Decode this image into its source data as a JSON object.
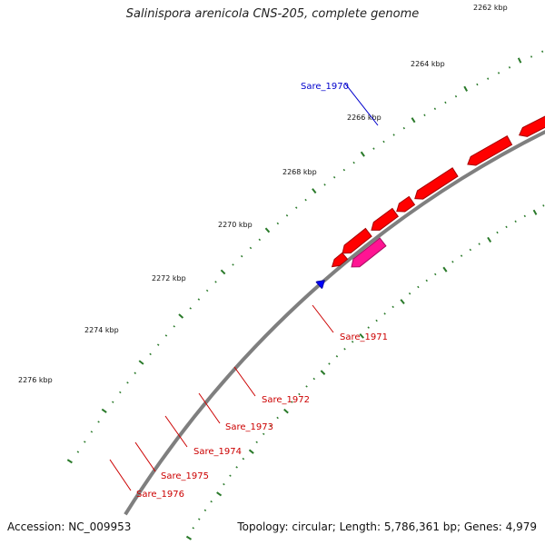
{
  "title": "Salinispora arenicola CNS-205, complete genome",
  "footer": {
    "accession": "Accession: NC_009953",
    "summary": "Topology: circular; Length: 5,786,361 bp; Genes: 4,979"
  },
  "colors": {
    "backbone": "#7f7f7f",
    "tick": "#2a7a2a",
    "cds_red": "#ff0000",
    "cds_pink": "#ff1493",
    "cds_blue": "#0000ff",
    "cds_gray": "#777777",
    "cds_lightgray": "#c0c0c0",
    "label_red": "#cc0000",
    "label_blue": "#0000cc"
  },
  "ticks": [
    {
      "label": "2262 kbp"
    },
    {
      "label": "2264 kbp"
    },
    {
      "label": "2266 kbp"
    },
    {
      "label": "2268 kbp"
    },
    {
      "label": "2270 kbp"
    },
    {
      "label": "2272 kbp"
    },
    {
      "label": "2274 kbp"
    },
    {
      "label": "2276 kbp"
    }
  ],
  "gene_labels": [
    {
      "text": "Sare_1970",
      "color": "blue"
    },
    {
      "text": "Sare_1971",
      "color": "red"
    },
    {
      "text": "Sare_1972",
      "color": "red"
    },
    {
      "text": "Sare_1973",
      "color": "red"
    },
    {
      "text": "Sare_1974",
      "color": "red"
    },
    {
      "text": "Sare_1975",
      "color": "red"
    },
    {
      "text": "Sare_1976",
      "color": "red"
    }
  ]
}
